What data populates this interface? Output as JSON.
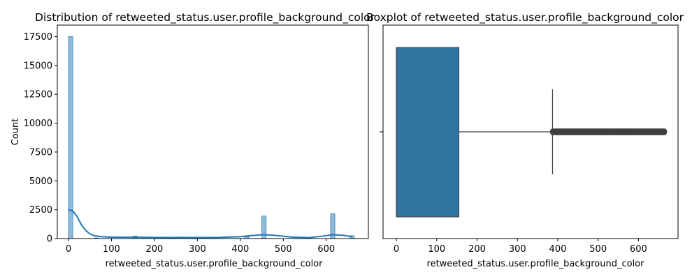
{
  "figure": {
    "background": "#ffffff"
  },
  "chart_data": [
    {
      "type": "histogram",
      "title": "Distribution of retweeted_status.user.profile_background_color",
      "xlabel": "retweeted_status.user.profile_background_color",
      "ylabel": "Count",
      "xlim": [
        -26,
        698
      ],
      "ylim": [
        0,
        18500
      ],
      "xticks": [
        0,
        100,
        200,
        300,
        400,
        500,
        600
      ],
      "yticks": [
        0,
        2500,
        5000,
        7500,
        10000,
        12500,
        15000,
        17500
      ],
      "grid": false,
      "bar_color": "#1f77b4",
      "bar_fill_opacity": 0.5,
      "bins": [
        {
          "x0": 0,
          "x1": 10,
          "count": 17500
        },
        {
          "x0": 60,
          "x1": 70,
          "count": 60
        },
        {
          "x0": 150,
          "x1": 160,
          "count": 220
        },
        {
          "x0": 175,
          "x1": 185,
          "count": 130
        },
        {
          "x0": 410,
          "x1": 420,
          "count": 150
        },
        {
          "x0": 450,
          "x1": 460,
          "count": 1950
        },
        {
          "x0": 610,
          "x1": 620,
          "count": 2150
        },
        {
          "x0": 655,
          "x1": 665,
          "count": 250
        }
      ],
      "kde": {
        "name": "KDE",
        "color": "#1f77b4",
        "x": [
          0,
          10,
          20,
          30,
          40,
          50,
          60,
          80,
          100,
          150,
          200,
          300,
          350,
          400,
          430,
          455,
          480,
          520,
          560,
          590,
          615,
          640,
          660
        ],
        "y": [
          2500,
          2400,
          1900,
          1200,
          700,
          400,
          250,
          150,
          120,
          110,
          100,
          90,
          100,
          160,
          270,
          330,
          280,
          120,
          80,
          200,
          330,
          280,
          150
        ]
      }
    },
    {
      "type": "boxplot",
      "title": "Boxplot of retweeted_status.user.profile_background_color",
      "xlabel": "retweeted_status.user.profile_background_color",
      "ylabel": "",
      "xlim": [
        -33,
        698
      ],
      "xticks": [
        0,
        100,
        200,
        300,
        400,
        500,
        600
      ],
      "grid": false,
      "box_color": "#3274a1",
      "line_color": "#3f3f3f",
      "stats": {
        "min": 0,
        "q1": 0,
        "median": 0,
        "q3": 155,
        "whisker_low": 0,
        "whisker_high": 387
      },
      "outliers": {
        "from": 387,
        "to": 665
      }
    }
  ]
}
